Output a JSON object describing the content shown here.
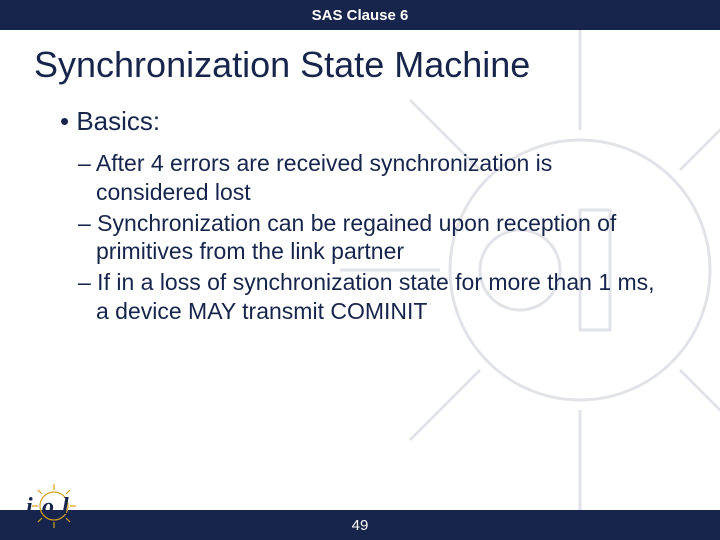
{
  "header": {
    "text": "SAS Clause 6",
    "bg_color": "#17254d",
    "text_color": "#ffffff"
  },
  "title": {
    "text": "Synchronization State Machine",
    "color": "#17254d"
  },
  "content": {
    "text_color": "#17254d",
    "bullet_l1": "• Basics:",
    "bullets_l2": [
      "– After 4 errors are received synchronization is considered lost",
      "– Synchronization can be regained upon reception of primitives from the link partner",
      "– If in a loss of synchronization state for more than 1 ms, a device MAY transmit COMINIT"
    ]
  },
  "footer": {
    "page_number": "49",
    "bg_color": "#17254d",
    "text_color": "#ffffff"
  },
  "watermark": {
    "stroke_color": "#17254d"
  },
  "logo": {
    "primary_color": "#17254d",
    "accent_color": "#d4a018"
  }
}
